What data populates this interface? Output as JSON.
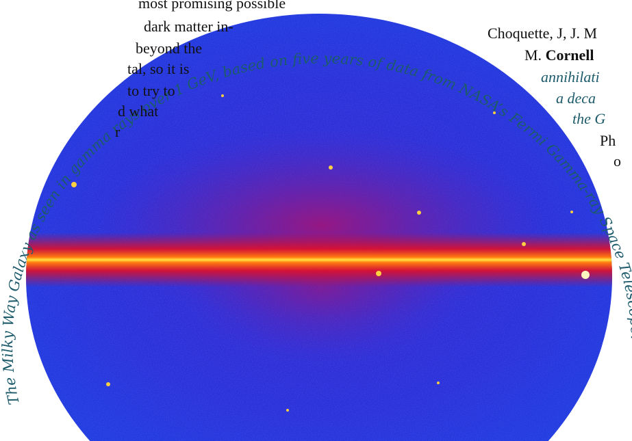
{
  "left_column": {
    "lines": [
      "most promising possible",
      "dark matter in-",
      "beyond the",
      "tal, so it is",
      "to try to",
      "d what",
      "r"
    ]
  },
  "right_column": {
    "lines": [
      "Choquette, J, J. M",
      "M.",
      "Cornell",
      "annihilati",
      "a deca",
      "the G",
      "Ph",
      "o"
    ]
  },
  "figure": {
    "caption": "The Milky Way Galaxy as seen in gamma rays over 1 GeV, based on five years of data from NASA’s Fermi Gamma-ray Space Telescope."
  }
}
